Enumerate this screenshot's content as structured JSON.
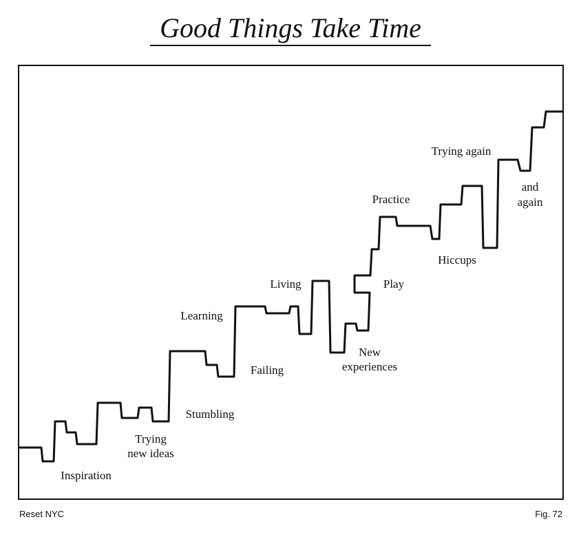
{
  "title": "Good Things Take Time",
  "labels": [
    [
      "Inspiration"
    ],
    [
      "Trying",
      "new ideas"
    ],
    [
      "Stumbling"
    ],
    [
      "Learning"
    ],
    [
      "Failing"
    ],
    [
      "Living"
    ],
    [
      "New",
      "experiences"
    ],
    [
      "Play"
    ],
    [
      "Practice"
    ],
    [
      "Hiccups"
    ],
    [
      "Trying again"
    ],
    [
      "and",
      "again"
    ]
  ],
  "footer": {
    "left": "Reset NYC",
    "right": "Fig. 72"
  }
}
